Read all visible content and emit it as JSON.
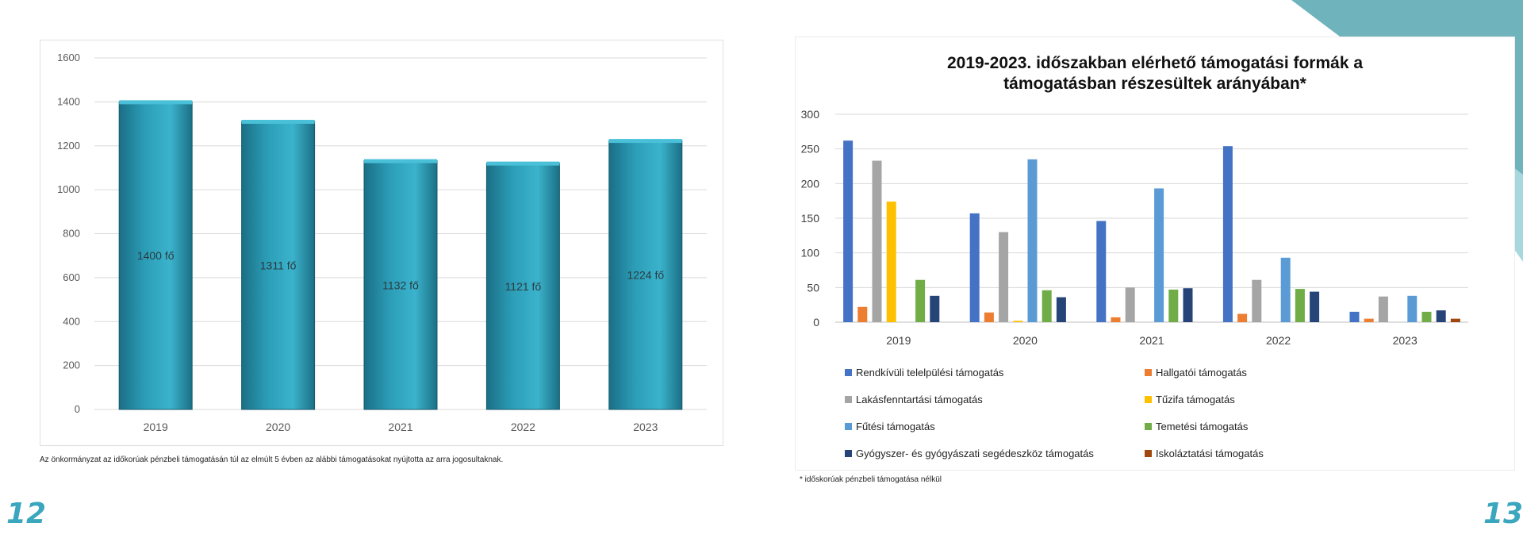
{
  "left_caption": "Az önkormányzat az időkorúak pénzbeli támogatásán túl az elmúlt 5 évben az alábbi támogatásokat nyújtotta az arra jogosultaknak.",
  "right_footnote": "* időskorúak pénzbeli támogatása nélkül",
  "page_left": "12",
  "page_right": "13",
  "colors": {
    "accent": "#3aa7be",
    "bar_fill": "#2c9db7",
    "corner_dark": "#6fb3bd",
    "corner_light": "#a9d7de"
  },
  "chart_data": [
    {
      "type": "bar",
      "categories": [
        "2019",
        "2020",
        "2021",
        "2022",
        "2023"
      ],
      "values": [
        1400,
        1311,
        1132,
        1121,
        1224
      ],
      "data_labels": [
        "1400 fő",
        "1311 fő",
        "1132 fő",
        "1121 fő",
        "1224 fő"
      ],
      "yticks": [
        "0",
        "200",
        "400",
        "600",
        "800",
        "1000",
        "1200",
        "1400",
        "1600"
      ],
      "ylim": [
        0,
        1600
      ],
      "title": "",
      "xlabel": "",
      "ylabel": "",
      "grid": true
    },
    {
      "type": "bar",
      "title_line1": "2019-2023. időszakban  elérhető támogatási formák  a",
      "title_line2": "támogatásban  részesültek arányában*",
      "categories": [
        "2019",
        "2020",
        "2021",
        "2022",
        "2023"
      ],
      "yticks": [
        "0",
        "50",
        "100",
        "150",
        "200",
        "250",
        "300"
      ],
      "ylim": [
        0,
        300
      ],
      "grid": true,
      "legend_position": "bottom",
      "series": [
        {
          "name": "Rendkívüli telelpülési támogatás",
          "color": "#4472c4",
          "values": [
            262,
            157,
            146,
            254,
            15
          ]
        },
        {
          "name": "Hallgatói támogatás",
          "color": "#ed7d31",
          "values": [
            22,
            14,
            7,
            12,
            5
          ]
        },
        {
          "name": "Lakásfenntartási támogatás",
          "color": "#a5a5a5",
          "values": [
            233,
            130,
            50,
            61,
            37
          ]
        },
        {
          "name": "Tűzifa támogatás",
          "color": "#ffc000",
          "values": [
            174,
            2,
            0,
            0,
            0
          ]
        },
        {
          "name": "Fűtési támogatás",
          "color": "#5b9bd5",
          "values": [
            0,
            235,
            193,
            93,
            38
          ]
        },
        {
          "name": "Temetési támogatás",
          "color": "#70ad47",
          "values": [
            61,
            46,
            47,
            48,
            15
          ]
        },
        {
          "name": "Gyógyszer- és gyógyászati segédeszköz támogatás",
          "color": "#264478",
          "values": [
            38,
            36,
            49,
            44,
            17
          ]
        },
        {
          "name": "Iskoláztatási támogatás",
          "color": "#9e480e",
          "values": [
            0,
            0,
            0,
            0,
            5
          ]
        }
      ]
    }
  ]
}
